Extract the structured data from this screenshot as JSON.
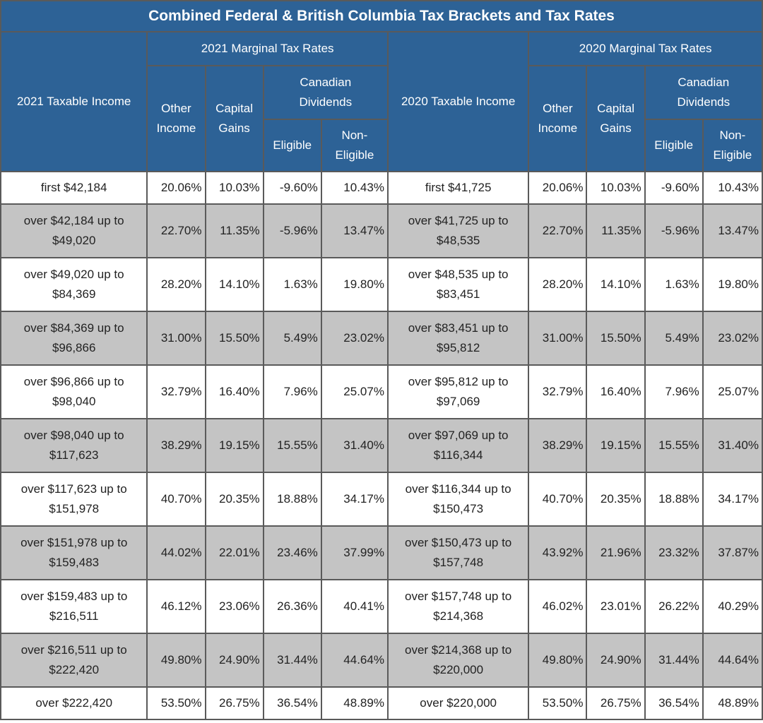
{
  "title": "Combined Federal & British Columbia Tax Brackets and Tax Rates",
  "headers": {
    "income_2021": "2021 Taxable Income",
    "rates_2021": "2021 Marginal Tax Rates",
    "income_2020": "2020 Taxable Income",
    "rates_2020": "2020 Marginal Tax Rates",
    "other_income": [
      "Other",
      "Income"
    ],
    "capital_gains": [
      "Capital",
      "Gains"
    ],
    "canadian_dividends": [
      "Canadian",
      "Dividends"
    ],
    "eligible": "Eligible",
    "non_eligible": [
      "Non-",
      "Eligible"
    ]
  },
  "rows": [
    {
      "inc21": [
        "first $42,184"
      ],
      "r21": [
        "20.06%",
        "10.03%",
        "-9.60%",
        "10.43%"
      ],
      "inc20": [
        "first $41,725"
      ],
      "r20": [
        "20.06%",
        "10.03%",
        "-9.60%",
        "10.43%"
      ]
    },
    {
      "inc21": [
        "over $42,184 up to",
        "$49,020"
      ],
      "r21": [
        "22.70%",
        "11.35%",
        "-5.96%",
        "13.47%"
      ],
      "inc20": [
        "over $41,725 up to",
        "$48,535"
      ],
      "r20": [
        "22.70%",
        "11.35%",
        "-5.96%",
        "13.47%"
      ]
    },
    {
      "inc21": [
        "over $49,020 up to",
        "$84,369"
      ],
      "r21": [
        "28.20%",
        "14.10%",
        "1.63%",
        "19.80%"
      ],
      "inc20": [
        "over $48,535 up to",
        "$83,451"
      ],
      "r20": [
        "28.20%",
        "14.10%",
        "1.63%",
        "19.80%"
      ]
    },
    {
      "inc21": [
        "over $84,369 up to",
        "$96,866"
      ],
      "r21": [
        "31.00%",
        "15.50%",
        "5.49%",
        "23.02%"
      ],
      "inc20": [
        "over $83,451 up to",
        "$95,812"
      ],
      "r20": [
        "31.00%",
        "15.50%",
        "5.49%",
        "23.02%"
      ]
    },
    {
      "inc21": [
        "over $96,866 up to",
        "$98,040"
      ],
      "r21": [
        "32.79%",
        "16.40%",
        "7.96%",
        "25.07%"
      ],
      "inc20": [
        "over $95,812 up to",
        "$97,069"
      ],
      "r20": [
        "32.79%",
        "16.40%",
        "7.96%",
        "25.07%"
      ]
    },
    {
      "inc21": [
        "over $98,040 up to",
        "$117,623"
      ],
      "r21": [
        "38.29%",
        "19.15%",
        "15.55%",
        "31.40%"
      ],
      "inc20": [
        "over $97,069 up to",
        "$116,344"
      ],
      "r20": [
        "38.29%",
        "19.15%",
        "15.55%",
        "31.40%"
      ]
    },
    {
      "inc21": [
        "over $117,623 up to",
        "$151,978"
      ],
      "r21": [
        "40.70%",
        "20.35%",
        "18.88%",
        "34.17%"
      ],
      "inc20": [
        "over $116,344 up to",
        "$150,473"
      ],
      "r20": [
        "40.70%",
        "20.35%",
        "18.88%",
        "34.17%"
      ]
    },
    {
      "inc21": [
        "over $151,978 up to",
        "$159,483"
      ],
      "r21": [
        "44.02%",
        "22.01%",
        "23.46%",
        "37.99%"
      ],
      "inc20": [
        "over $150,473 up to",
        "$157,748"
      ],
      "r20": [
        "43.92%",
        "21.96%",
        "23.32%",
        "37.87%"
      ]
    },
    {
      "inc21": [
        "over $159,483 up to",
        "$216,511"
      ],
      "r21": [
        "46.12%",
        "23.06%",
        "26.36%",
        "40.41%"
      ],
      "inc20": [
        "over $157,748 up to",
        "$214,368"
      ],
      "r20": [
        "46.02%",
        "23.01%",
        "26.22%",
        "40.29%"
      ]
    },
    {
      "inc21": [
        "over $216,511 up to",
        "$222,420"
      ],
      "r21": [
        "49.80%",
        "24.90%",
        "31.44%",
        "44.64%"
      ],
      "inc20": [
        "over $214,368 up to",
        "$220,000"
      ],
      "r20": [
        "49.80%",
        "24.90%",
        "31.44%",
        "44.64%"
      ]
    },
    {
      "inc21": [
        "over $222,420"
      ],
      "r21": [
        "53.50%",
        "26.75%",
        "36.54%",
        "48.89%"
      ],
      "inc20": [
        "over $220,000"
      ],
      "r20": [
        "53.50%",
        "26.75%",
        "36.54%",
        "48.89%"
      ]
    }
  ]
}
